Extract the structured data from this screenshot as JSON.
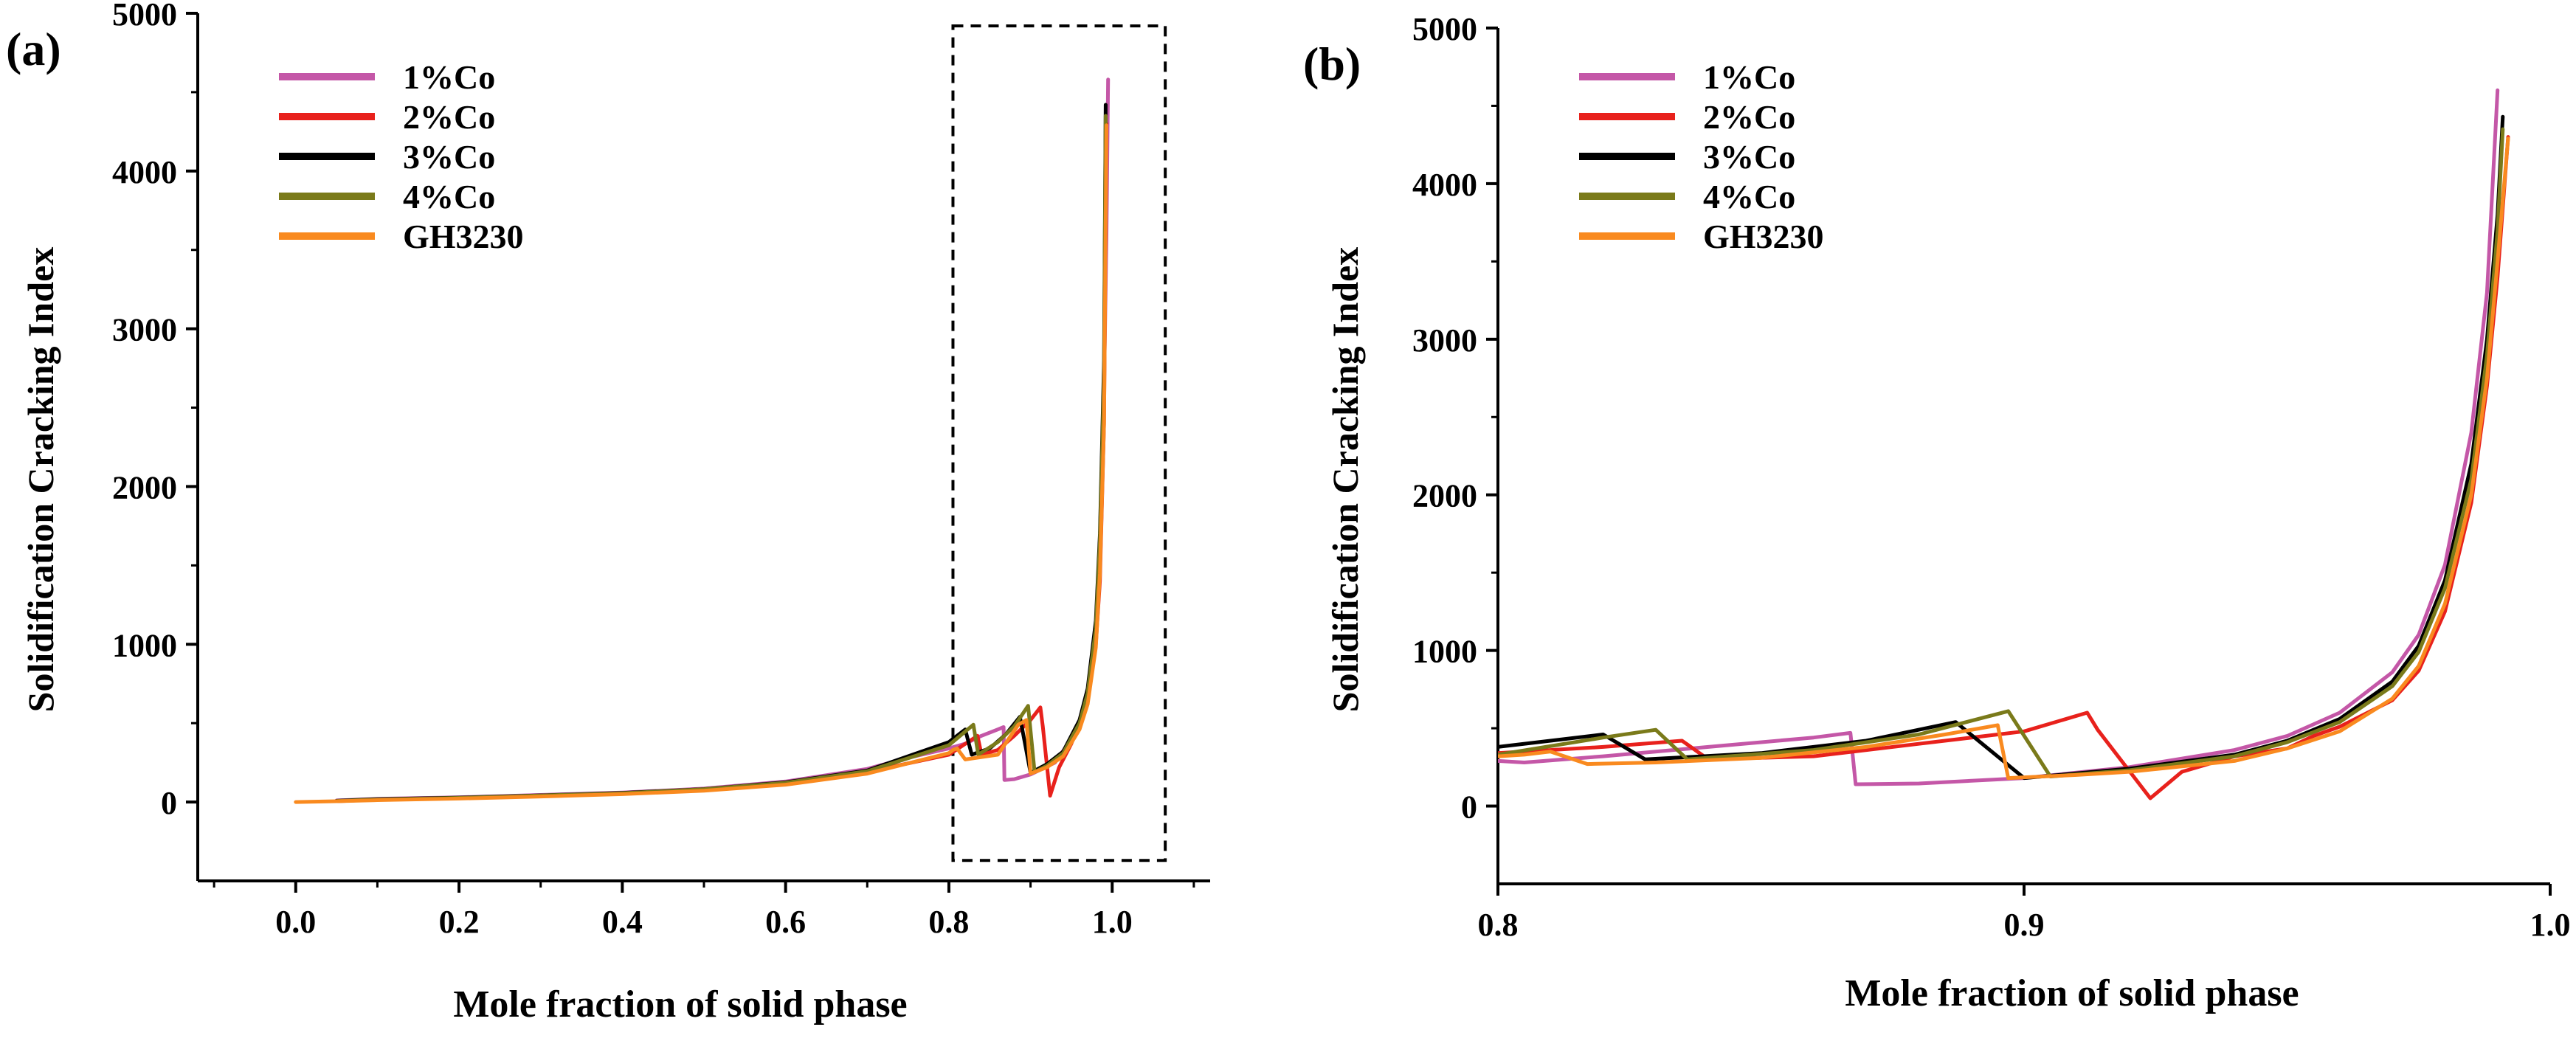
{
  "colors": {
    "1%Co": "#c457a7",
    "2%Co": "#e8211c",
    "3%Co": "#000000",
    "4%Co": "#7a7a1a",
    "GH3230": "#f98a1f"
  },
  "chart_data": [
    {
      "type": "line",
      "panel_label": "(a)",
      "xlabel": "Mole fraction of solid phase",
      "ylabel": "Solidification Cracking Index",
      "xlim": [
        -0.12,
        1.12
      ],
      "ylim": [
        -500,
        5000
      ],
      "xticks": [
        "0.0",
        "0.2",
        "0.4",
        "0.6",
        "0.8",
        "1.0"
      ],
      "yticks": [
        "0",
        "1000",
        "2000",
        "3000",
        "4000",
        "5000"
      ],
      "legend_location": "top-left",
      "zoom_box_x": [
        0.805,
        1.065
      ],
      "zoom_box_y": [
        -370,
        4920
      ],
      "series": [
        {
          "name": "1%Co",
          "x": [
            0.05,
            0.1,
            0.2,
            0.3,
            0.4,
            0.5,
            0.6,
            0.7,
            0.75,
            0.8,
            0.82,
            0.84,
            0.86,
            0.867,
            0.868,
            0.88,
            0.9,
            0.93,
            0.95,
            0.96,
            0.97,
            0.98,
            0.985,
            0.99,
            0.993,
            0.995
          ],
          "y": [
            10,
            20,
            30,
            45,
            60,
            85,
            130,
            210,
            280,
            340,
            370,
            420,
            460,
            475,
            140,
            145,
            175,
            250,
            400,
            520,
            700,
            1100,
            1600,
            2600,
            3600,
            4580
          ]
        },
        {
          "name": "2%Co",
          "x": [
            0.05,
            0.1,
            0.2,
            0.3,
            0.4,
            0.5,
            0.6,
            0.7,
            0.8,
            0.835,
            0.84,
            0.86,
            0.88,
            0.9,
            0.912,
            0.915,
            0.924,
            0.935,
            0.95,
            0.96,
            0.97,
            0.98,
            0.985,
            0.99,
            0.993
          ],
          "y": [
            5,
            15,
            25,
            40,
            55,
            80,
            120,
            190,
            300,
            420,
            300,
            330,
            420,
            520,
            600,
            480,
            40,
            220,
            370,
            500,
            650,
            1000,
            1400,
            2400,
            4300
          ]
        },
        {
          "name": "3%Co",
          "x": [
            0.05,
            0.1,
            0.2,
            0.3,
            0.4,
            0.5,
            0.6,
            0.7,
            0.8,
            0.82,
            0.828,
            0.85,
            0.87,
            0.887,
            0.9,
            0.92,
            0.94,
            0.96,
            0.97,
            0.98,
            0.985,
            0.99,
            0.992
          ],
          "y": [
            8,
            18,
            28,
            42,
            58,
            82,
            125,
            200,
            380,
            460,
            300,
            340,
            430,
            540,
            185,
            240,
            320,
            520,
            720,
            1150,
            1700,
            2800,
            4420
          ]
        },
        {
          "name": "4%Co",
          "x": [
            0.05,
            0.1,
            0.2,
            0.3,
            0.4,
            0.5,
            0.6,
            0.7,
            0.8,
            0.83,
            0.836,
            0.86,
            0.88,
            0.897,
            0.905,
            0.92,
            0.94,
            0.96,
            0.97,
            0.98,
            0.985,
            0.99,
            0.992
          ],
          "y": [
            6,
            16,
            26,
            41,
            56,
            81,
            122,
            195,
            360,
            490,
            300,
            380,
            480,
            610,
            190,
            230,
            310,
            500,
            690,
            1100,
            1650,
            2700,
            4350
          ]
        },
        {
          "name": "GH3230",
          "x": [
            0.0,
            0.05,
            0.1,
            0.2,
            0.3,
            0.4,
            0.5,
            0.6,
            0.7,
            0.8,
            0.805,
            0.81,
            0.82,
            0.86,
            0.885,
            0.895,
            0.9,
            0.92,
            0.94,
            0.96,
            0.97,
            0.98,
            0.985,
            0.99,
            0.993
          ],
          "y": [
            0,
            5,
            12,
            22,
            35,
            50,
            72,
            110,
            180,
            310,
            330,
            340,
            270,
            300,
            490,
            520,
            180,
            220,
            290,
            460,
            620,
            980,
            1450,
            2400,
            4290
          ]
        }
      ]
    },
    {
      "type": "line",
      "panel_label": "(b)",
      "xlabel": "Mole fraction of solid phase",
      "ylabel": "Solidification Cracking Index",
      "xlim": [
        0.8,
        1.0
      ],
      "ylim": [
        -500,
        5000
      ],
      "xticks": [
        "0.8",
        "0.9",
        "1.0"
      ],
      "yticks": [
        "0",
        "1000",
        "2000",
        "3000",
        "4000",
        "5000"
      ],
      "legend_location": "top-left",
      "series": [
        {
          "name": "1%Co",
          "x": [
            0.8,
            0.805,
            0.82,
            0.84,
            0.86,
            0.867,
            0.868,
            0.88,
            0.9,
            0.92,
            0.94,
            0.95,
            0.96,
            0.97,
            0.975,
            0.98,
            0.985,
            0.988,
            0.99
          ],
          "y": [
            290,
            280,
            320,
            380,
            440,
            470,
            140,
            145,
            180,
            250,
            360,
            450,
            600,
            860,
            1100,
            1550,
            2400,
            3300,
            4600
          ]
        },
        {
          "name": "2%Co",
          "x": [
            0.8,
            0.82,
            0.835,
            0.84,
            0.86,
            0.88,
            0.9,
            0.912,
            0.914,
            0.924,
            0.93,
            0.94,
            0.95,
            0.955,
            0.96,
            0.97,
            0.975,
            0.98,
            0.985,
            0.988,
            0.99,
            0.992
          ],
          "y": [
            340,
            380,
            420,
            300,
            320,
            400,
            480,
            600,
            490,
            50,
            220,
            320,
            370,
            450,
            510,
            680,
            870,
            1250,
            1950,
            2700,
            3400,
            4300
          ]
        },
        {
          "name": "3%Co",
          "x": [
            0.8,
            0.81,
            0.82,
            0.828,
            0.85,
            0.87,
            0.887,
            0.9,
            0.92,
            0.94,
            0.95,
            0.96,
            0.97,
            0.975,
            0.98,
            0.985,
            0.988,
            0.99,
            0.991
          ],
          "y": [
            380,
            420,
            460,
            300,
            340,
            420,
            540,
            180,
            240,
            330,
            420,
            560,
            800,
            1030,
            1450,
            2200,
            3000,
            3800,
            4430
          ]
        },
        {
          "name": "4%Co",
          "x": [
            0.8,
            0.82,
            0.83,
            0.836,
            0.86,
            0.88,
            0.897,
            0.905,
            0.92,
            0.94,
            0.95,
            0.96,
            0.97,
            0.975,
            0.98,
            0.985,
            0.988,
            0.99,
            0.991
          ],
          "y": [
            330,
            440,
            490,
            300,
            360,
            460,
            610,
            190,
            230,
            320,
            410,
            540,
            770,
            990,
            1400,
            2100,
            2900,
            3700,
            4350
          ]
        },
        {
          "name": "GH3230",
          "x": [
            0.8,
            0.805,
            0.81,
            0.817,
            0.83,
            0.85,
            0.87,
            0.885,
            0.895,
            0.897,
            0.91,
            0.92,
            0.94,
            0.95,
            0.96,
            0.97,
            0.975,
            0.98,
            0.985,
            0.988,
            0.99,
            0.992
          ],
          "y": [
            320,
            330,
            350,
            270,
            280,
            310,
            380,
            460,
            520,
            180,
            200,
            220,
            290,
            370,
            480,
            690,
            900,
            1300,
            2000,
            2750,
            3500,
            4290
          ]
        }
      ]
    }
  ]
}
